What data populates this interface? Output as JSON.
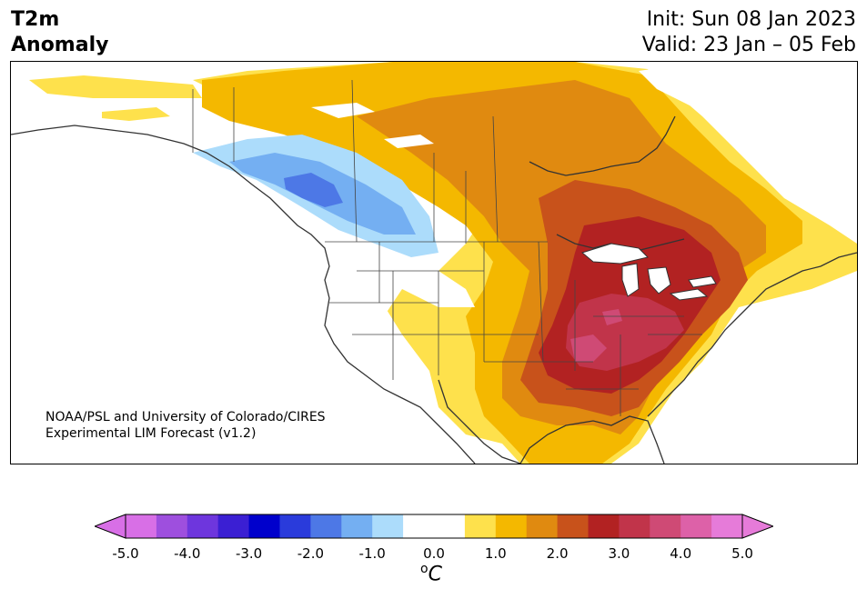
{
  "title": {
    "variable_line1": "T2m",
    "variable_line2": "Anomaly",
    "init": "Init: Sun 08 Jan 2023",
    "valid": "Valid: 23 Jan – 05 Feb"
  },
  "credit": {
    "line1": "NOAA/PSL and University of Colorado/CIRES",
    "line2": "Experimental LIM Forecast (v1.2)"
  },
  "colorbar": {
    "unit_base": "C",
    "unit_sup": "o",
    "ticks": [
      "-5.0",
      "-4.0",
      "-3.0",
      "-2.0",
      "-1.0",
      "0.0",
      "1.0",
      "2.0",
      "3.0",
      "4.0",
      "5.0"
    ],
    "colors": [
      "#d86fe6",
      "#9e4fde",
      "#6e36dd",
      "#3b1fd3",
      "#0000cc",
      "#2a3bdb",
      "#4d78e6",
      "#74aff2",
      "#acdcfb",
      "#ffffff",
      "#ffffff",
      "#fee14c",
      "#f4b800",
      "#e08a10",
      "#c8521b",
      "#b22222",
      "#c1344a",
      "#cf4a75",
      "#dd61a8",
      "#e67bd9"
    ],
    "extend_low_color": "#d86fe6",
    "extend_high_color": "#e67bd9"
  },
  "map": {
    "region": "North America",
    "anomaly_colors": {
      "pos_0_5": "#fee14c",
      "pos_1_0": "#f4b800",
      "pos_1_5": "#e08a10",
      "pos_2_0": "#c8521b",
      "pos_2_5": "#b22222",
      "pos_3_0": "#c1344a",
      "pos_3_5": "#cf4a75",
      "neg_0_5": "#acdcfb",
      "neg_1_0": "#74aff2",
      "neg_1_5": "#4d78e6"
    }
  }
}
